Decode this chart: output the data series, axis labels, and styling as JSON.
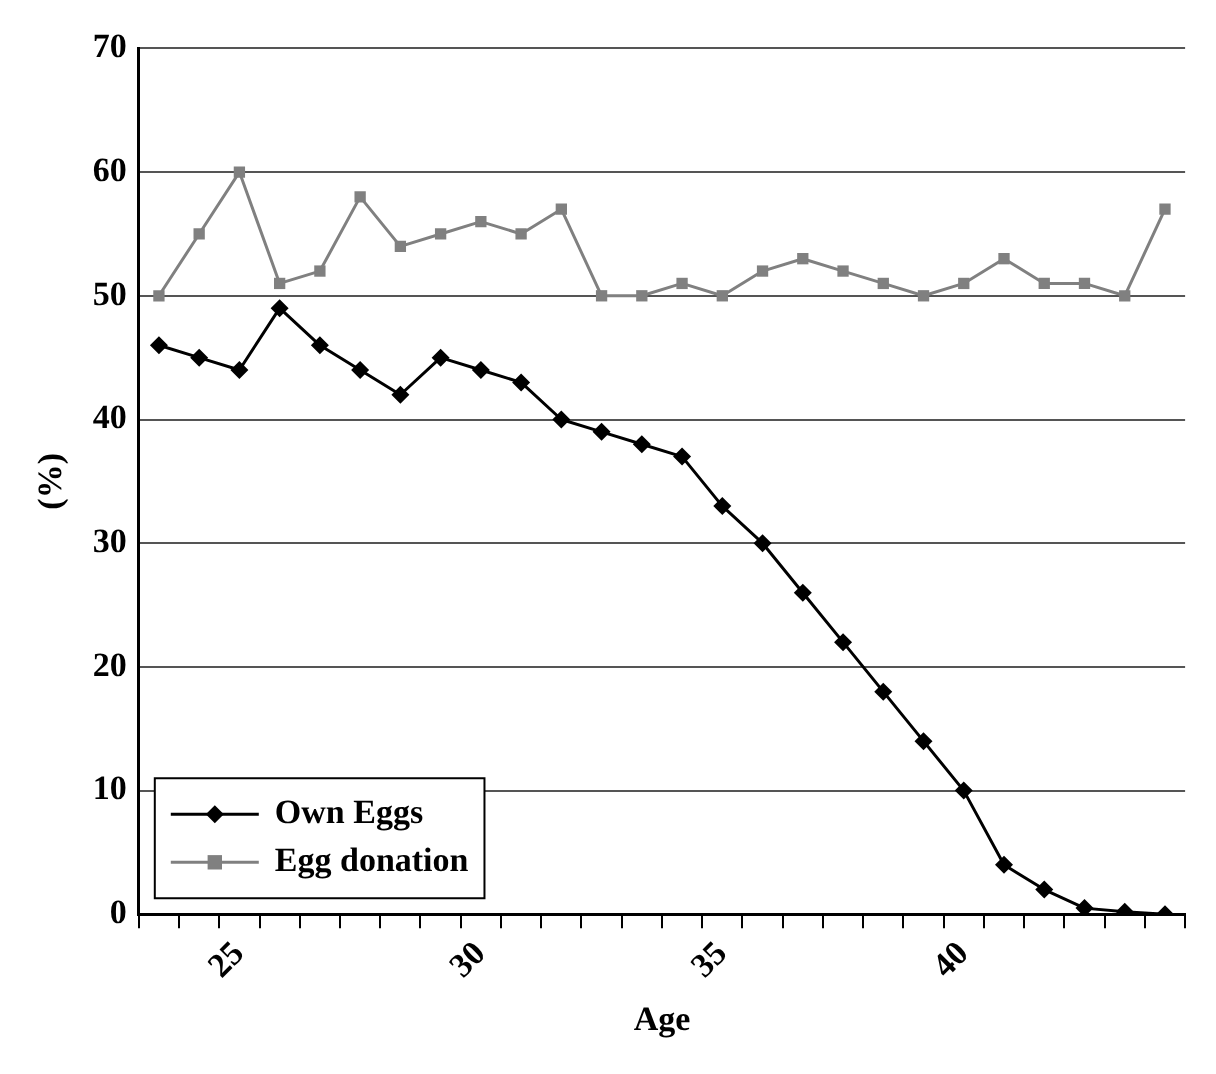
{
  "chart_data": {
    "type": "line",
    "xlabel": "Age",
    "ylabel": "(%)",
    "categories": [
      null,
      null,
      "25",
      null,
      null,
      null,
      null,
      null,
      "30",
      null,
      null,
      null,
      null,
      null,
      "35",
      null,
      null,
      null,
      null,
      null,
      "40",
      null,
      null,
      null,
      null,
      null
    ],
    "series": [
      {
        "name": "Own Eggs",
        "color": "#000000",
        "marker": "diamond",
        "values": [
          46,
          45,
          44,
          49,
          46,
          44,
          42,
          45,
          44,
          43,
          40,
          39,
          38,
          37,
          33,
          30,
          26,
          22,
          18,
          14,
          10,
          4,
          2,
          0.5,
          0.2,
          0
        ]
      },
      {
        "name": "Egg donation",
        "color": "#808080",
        "marker": "square",
        "values": [
          50,
          55,
          60,
          51,
          52,
          58,
          54,
          55,
          56,
          55,
          57,
          50,
          50,
          51,
          50,
          52,
          53,
          52,
          51,
          50,
          51,
          53,
          51,
          51,
          50,
          57
        ]
      }
    ],
    "ylim": [
      0,
      70
    ],
    "yticks": [
      0,
      10,
      20,
      30,
      40,
      50,
      60,
      70
    ],
    "grid": "y",
    "legend": "bottom left",
    "line_style": "solid"
  }
}
